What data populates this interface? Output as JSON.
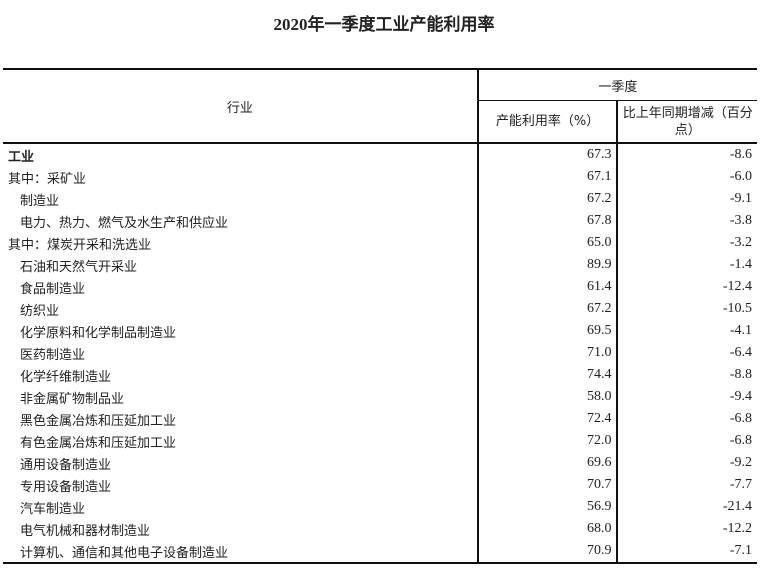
{
  "title": "2020年一季度工业产能利用率",
  "header": {
    "industry": "行业",
    "period": "一季度",
    "rate": "产能利用率（%）",
    "change": "比上年同期增减（百分点）"
  },
  "rows": [
    {
      "name": "工业",
      "rate": "67.3",
      "change": "-8.6",
      "style": "bold"
    },
    {
      "name": "其中：采矿业",
      "rate": "67.1",
      "change": "-6.0",
      "style": "sub"
    },
    {
      "name": "制造业",
      "rate": "67.2",
      "change": "-9.1",
      "style": ""
    },
    {
      "name": "电力、热力、燃气及水生产和供应业",
      "rate": "67.8",
      "change": "-3.8",
      "style": ""
    },
    {
      "name": "其中：煤炭开采和洗选业",
      "rate": "65.0",
      "change": "-3.2",
      "style": "sub"
    },
    {
      "name": "石油和天然气开采业",
      "rate": "89.9",
      "change": "-1.4",
      "style": ""
    },
    {
      "name": "食品制造业",
      "rate": "61.4",
      "change": "-12.4",
      "style": ""
    },
    {
      "name": "纺织业",
      "rate": "67.2",
      "change": "-10.5",
      "style": ""
    },
    {
      "name": "化学原料和化学制品制造业",
      "rate": "69.5",
      "change": "-4.1",
      "style": ""
    },
    {
      "name": "医药制造业",
      "rate": "71.0",
      "change": "-6.4",
      "style": ""
    },
    {
      "name": "化学纤维制造业",
      "rate": "74.4",
      "change": "-8.8",
      "style": ""
    },
    {
      "name": "非金属矿物制品业",
      "rate": "58.0",
      "change": "-9.4",
      "style": ""
    },
    {
      "name": "黑色金属冶炼和压延加工业",
      "rate": "72.4",
      "change": "-6.8",
      "style": ""
    },
    {
      "name": "有色金属冶炼和压延加工业",
      "rate": "72.0",
      "change": "-6.8",
      "style": ""
    },
    {
      "name": "通用设备制造业",
      "rate": "69.6",
      "change": "-9.2",
      "style": ""
    },
    {
      "name": "专用设备制造业",
      "rate": "70.7",
      "change": "-7.7",
      "style": ""
    },
    {
      "name": "汽车制造业",
      "rate": "56.9",
      "change": "-21.4",
      "style": ""
    },
    {
      "name": "电气机械和器材制造业",
      "rate": "68.0",
      "change": "-12.2",
      "style": ""
    },
    {
      "name": "计算机、通信和其他电子设备制造业",
      "rate": "70.9",
      "change": "-7.1",
      "style": ""
    }
  ]
}
